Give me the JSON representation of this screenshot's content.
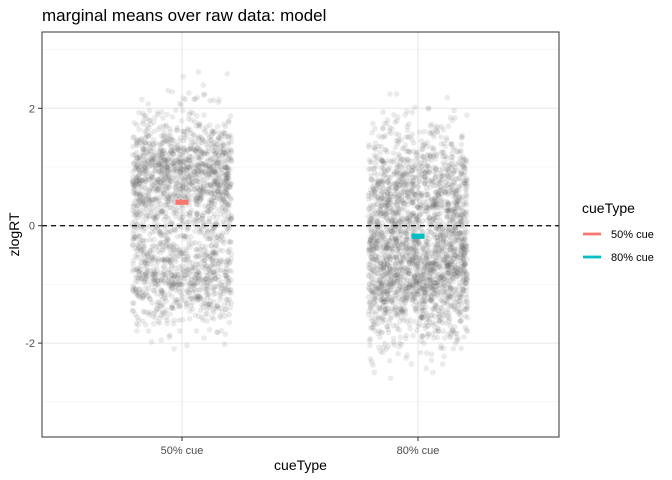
{
  "chart_data": {
    "type": "scatter",
    "title": "marginal means over raw data: model",
    "xlabel": "cueType",
    "ylabel": "zlogRT",
    "categories": [
      "50% cue",
      "80% cue"
    ],
    "ylim": [
      -3.6,
      3.3
    ],
    "yticks": [
      -2,
      0,
      2
    ],
    "grid": true,
    "reference_line": {
      "y": 0,
      "style": "dashed"
    },
    "raw_points": {
      "color": "#5c5c5c",
      "opacity": 0.12,
      "jitter_width": 0.21,
      "per_category": [
        {
          "category": "50% cue",
          "range": [
            -2.85,
            2.95
          ],
          "modes": [
            0.85,
            -0.85
          ]
        },
        {
          "category": "80% cue",
          "range": [
            -3.3,
            2.85
          ],
          "modes": [
            0.5,
            -0.9
          ]
        }
      ]
    },
    "series": [
      {
        "name": "50% cue",
        "color": "#F8766D",
        "x": "50% cue",
        "y": 0.4
      },
      {
        "name": "80% cue",
        "color": "#00BFC4",
        "x": "80% cue",
        "y": -0.18
      }
    ],
    "legend": {
      "title": "cueType",
      "position": "right",
      "entries": [
        "50% cue",
        "80% cue"
      ]
    }
  }
}
